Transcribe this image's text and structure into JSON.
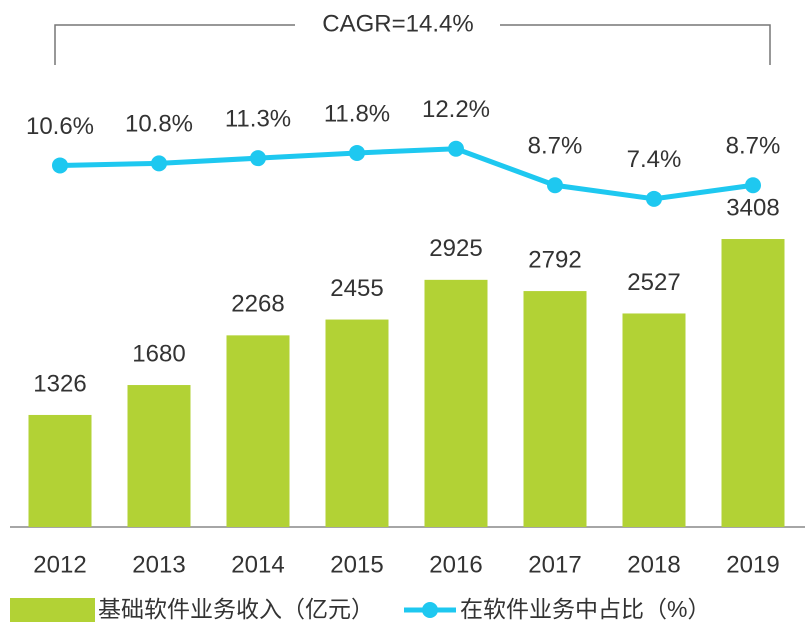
{
  "chart_data": {
    "type": "bar",
    "annotation": "CAGR=14.4%",
    "categories": [
      "2012",
      "2013",
      "2014",
      "2015",
      "2016",
      "2017",
      "2018",
      "2019"
    ],
    "series": [
      {
        "name": "基础软件业务收入（亿元）",
        "color": "#b2d235",
        "type": "bar",
        "values": [
          1326,
          1680,
          2268,
          2455,
          2925,
          2792,
          2527,
          3408
        ]
      },
      {
        "name": "在软件业务中占比（%）",
        "color": "#1ec8f0",
        "type": "line",
        "axis": "y2",
        "values": [
          10.6,
          10.8,
          11.3,
          11.8,
          12.2,
          8.7,
          7.4,
          8.7
        ],
        "value_labels": [
          "10.6%",
          "10.8%",
          "11.3%",
          "11.8%",
          "12.2%",
          "8.7%",
          "7.4%",
          "8.7%"
        ]
      }
    ],
    "ylim": [
      0,
      4000
    ],
    "y2lim": [
      0,
      14
    ],
    "legend": "bottom"
  }
}
